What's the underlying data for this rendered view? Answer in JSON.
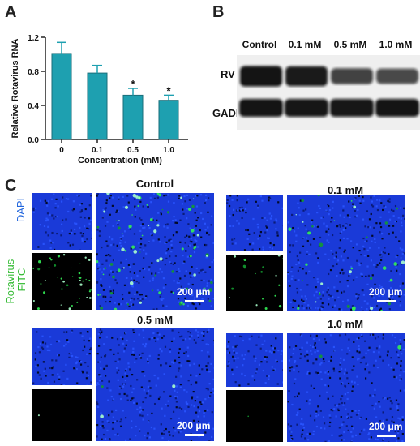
{
  "panels": {
    "a": "A",
    "b": "B",
    "c": "C"
  },
  "chart_data": {
    "type": "bar",
    "categories": [
      "0",
      "0.1",
      "0.5",
      "1.0"
    ],
    "values": [
      1.01,
      0.78,
      0.52,
      0.46
    ],
    "errors": [
      0.13,
      0.09,
      0.08,
      0.06
    ],
    "significance": [
      "",
      "",
      "*",
      "*"
    ],
    "title": "",
    "xlabel": "Concentration (mM)",
    "ylabel": "Relative Rotavirus RNA",
    "ylim": [
      0,
      1.2
    ],
    "yticks": [
      "0.0",
      "0.4",
      "0.8",
      "1.2"
    ],
    "grid": false,
    "bar_color": "#1ea0b0"
  },
  "blot": {
    "columns": [
      "Control",
      "0.1 mM",
      "0.5 mM",
      "1.0 mM"
    ],
    "rows": [
      "RV",
      "GADPH"
    ],
    "rv_intensity": [
      0.95,
      0.9,
      0.6,
      0.55
    ],
    "gadph_intensity": [
      0.95,
      0.93,
      0.92,
      0.95
    ]
  },
  "micrographs": {
    "row_labels": {
      "dapi": "DAPI",
      "fitc_line1": "Rotavirus-",
      "fitc_line2": "FITC"
    },
    "conditions": [
      "Control",
      "0.1 mM",
      "0.5 mM",
      "1.0 mM"
    ],
    "scale_bar": "200 μm",
    "green_density": [
      1.0,
      0.45,
      0.04,
      0.03
    ],
    "colors": {
      "dapi": "#1a3ad8",
      "fitc": "#22dd44",
      "dapi_label": "#2266dd",
      "fitc_label": "#33bb33"
    }
  }
}
